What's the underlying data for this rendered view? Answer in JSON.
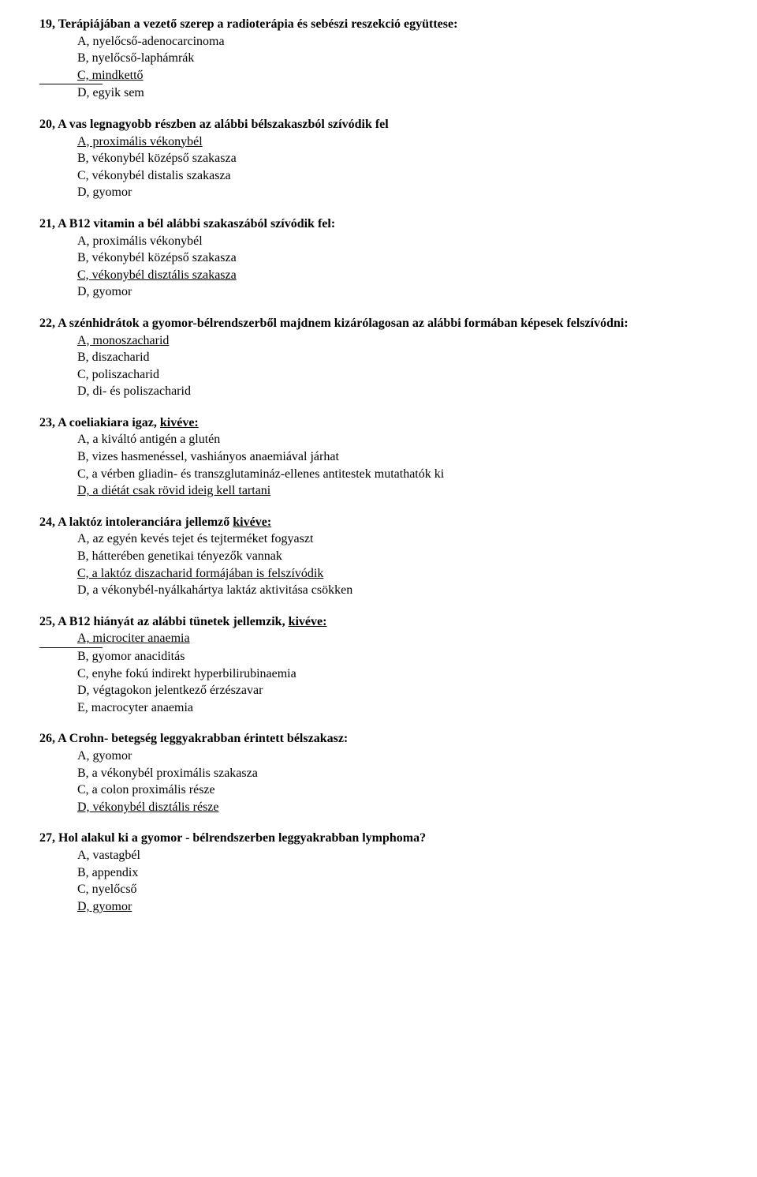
{
  "q19": {
    "title": "19, Terápiájában a vezető szerep a radioterápia és sebészi reszekció együttese:",
    "a": "A, nyelőcső-adenocarcinoma",
    "b": "B, nyelőcső-laphámrák",
    "c": "C, mindkettő",
    "d": "D, egyik sem"
  },
  "q20": {
    "title": "20, A vas legnagyobb részben az alábbi bélszakaszból szívódik fel",
    "a": "A, proximális vékonybél",
    "b": "B, vékonybél középső szakasza",
    "c": "C, vékonybél distalis szakasza",
    "d": "D, gyomor"
  },
  "q21": {
    "title": "21, A B12 vitamin a bél alábbi szakaszából szívódik fel:",
    "a": "A, proximális vékonybél",
    "b": "B, vékonybél középső szakasza",
    "c": "C, vékonybél disztális szakasza",
    "d": "D, gyomor"
  },
  "q22": {
    "title": "22, A szénhidrátok a gyomor-bélrendszerből majdnem kizárólagosan az alábbi formában képesek felszívódni:",
    "a": "A, monoszacharid",
    "b": "B, diszacharid",
    "c": "C, poliszacharid",
    "d": "D, di- és poliszacharid"
  },
  "q23": {
    "title_pre": "23, A coeliakiara igaz, ",
    "title_u": "kivéve:",
    "a": "A, a kiváltó antigén a glutén",
    "b": "B, vizes hasmenéssel, vashiányos anaemiával járhat",
    "c": "C, a vérben gliadin- és transzglutamináz-ellenes antitestek mutathatók ki",
    "d": "D, a diétát csak rövid ideig kell tartani"
  },
  "q24": {
    "title_pre": "24, A laktóz intoleranciára jellemző ",
    "title_u": "kivéve:",
    "a": "A, az egyén kevés tejet és tejterméket fogyaszt",
    "b": "B, hátterében genetikai tényezők vannak",
    "c": "C, a laktóz diszacharid formájában is felszívódik",
    "d": "D, a vékonybél-nyálkahártya laktáz aktivitása csökken"
  },
  "q25": {
    "title_pre": "25, A B12 hiányát az alábbi tünetek jellemzik, ",
    "title_u": "kivéve:",
    "a": "A, microciter anaemia",
    "b": "B, gyomor anaciditás",
    "c": "C, enyhe fokú indirekt hyperbilirubinaemia",
    "d": "D, végtagokon jelentkező érzészavar",
    "e": "E, macrocyter anaemia"
  },
  "q26": {
    "title": "26, A Crohn- betegség leggyakrabban érintett bélszakasz:",
    "a": "A, gyomor",
    "b": "B, a vékonybél proximális szakasza",
    "c": "C, a colon proximális része",
    "d": "D, vékonybél disztális része"
  },
  "q27": {
    "title": "27, Hol alakul ki a gyomor - bélrendszerben leggyakrabban lymphoma?",
    "a": "A, vastagbél",
    "b": "B, appendix",
    "c": "C, nyelőcső",
    "d": "D, gyomor"
  }
}
